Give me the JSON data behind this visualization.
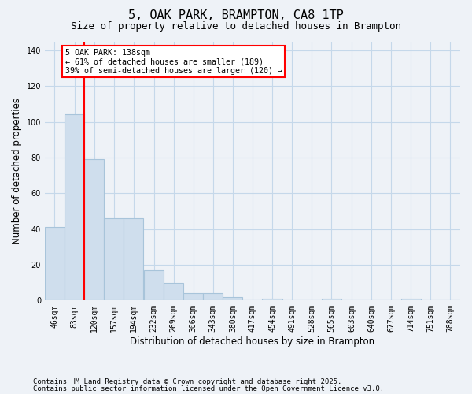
{
  "title": "5, OAK PARK, BRAMPTON, CA8 1TP",
  "subtitle": "Size of property relative to detached houses in Brampton",
  "xlabel": "Distribution of detached houses by size in Brampton",
  "ylabel": "Number of detached properties",
  "bar_values": [
    41,
    104,
    79,
    46,
    46,
    17,
    10,
    4,
    4,
    2,
    0,
    1,
    0,
    0,
    1,
    0,
    0,
    0,
    1,
    0,
    0
  ],
  "bin_labels": [
    "46sqm",
    "83sqm",
    "120sqm",
    "157sqm",
    "194sqm",
    "232sqm",
    "269sqm",
    "306sqm",
    "343sqm",
    "380sqm",
    "417sqm",
    "454sqm",
    "491sqm",
    "528sqm",
    "565sqm",
    "603sqm",
    "640sqm",
    "677sqm",
    "714sqm",
    "751sqm",
    "788sqm"
  ],
  "bin_edges": [
    46,
    83,
    120,
    157,
    194,
    232,
    269,
    306,
    343,
    380,
    417,
    454,
    491,
    528,
    565,
    603,
    640,
    677,
    714,
    751,
    788
  ],
  "bin_width": 37,
  "bar_color": "#cfdeed",
  "bar_edge_color": "#a8c4da",
  "grid_color": "#c5d8ea",
  "red_line_x": 120,
  "annotation_box_text": "5 OAK PARK: 138sqm\n← 61% of detached houses are smaller (189)\n39% of semi-detached houses are larger (120) →",
  "ylim": [
    0,
    145
  ],
  "yticks": [
    0,
    20,
    40,
    60,
    80,
    100,
    120,
    140
  ],
  "footer_line1": "Contains HM Land Registry data © Crown copyright and database right 2025.",
  "footer_line2": "Contains public sector information licensed under the Open Government Licence v3.0.",
  "background_color": "#eef2f7",
  "title_fontsize": 11,
  "subtitle_fontsize": 9,
  "axis_label_fontsize": 8.5,
  "tick_fontsize": 7,
  "footer_fontsize": 6.5
}
